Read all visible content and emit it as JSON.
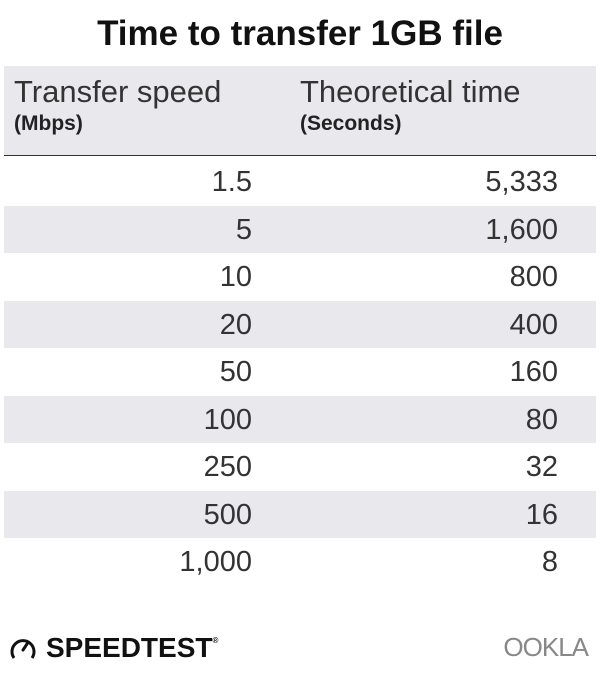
{
  "chart_data": {
    "type": "table",
    "title": "Time to transfer 1GB file",
    "columns": [
      {
        "label": "Transfer speed",
        "unit": "(Mbps)"
      },
      {
        "label": "Theoretical time",
        "unit": "(Seconds)"
      }
    ],
    "rows": [
      [
        "1.5",
        "5,333"
      ],
      [
        "5",
        "1,600"
      ],
      [
        "10",
        "800"
      ],
      [
        "20",
        "400"
      ],
      [
        "50",
        "160"
      ],
      [
        "100",
        "80"
      ],
      [
        "250",
        "32"
      ],
      [
        "500",
        "16"
      ],
      [
        "1,000",
        "8"
      ]
    ]
  },
  "footer": {
    "brand": "SPEEDTEST",
    "trademark": "®",
    "partner_logo": "OOKLA",
    "brand_icon": "speedometer-icon"
  },
  "colors": {
    "stripe": "#e8e8ed",
    "text": "#333333"
  }
}
